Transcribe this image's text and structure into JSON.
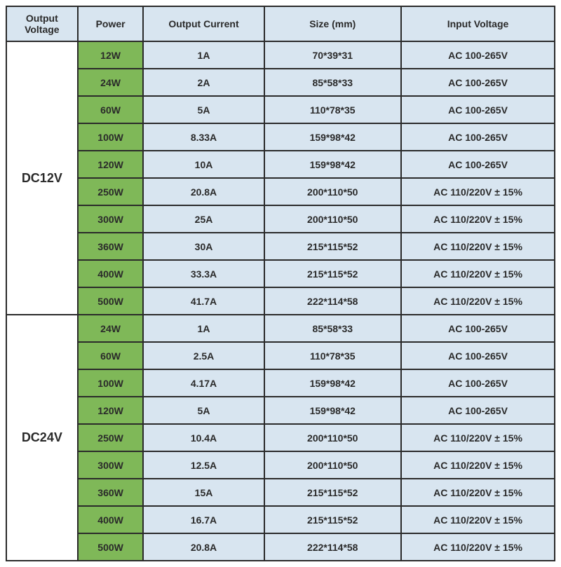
{
  "table": {
    "headers": {
      "output_voltage": "Output Voltage",
      "power": "Power",
      "output_current": "Output Current",
      "size": "Size (mm)",
      "input_voltage": "Input Voltage"
    },
    "colors": {
      "header_bg": "#d8e5f0",
      "voltage_bg": "#ffffff",
      "power_bg": "#7fb858",
      "data_bg": "#d8e5f0",
      "border": "#2a2a2a",
      "text": "#2a2a2a"
    },
    "groups": [
      {
        "voltage": "DC12V",
        "rows": [
          {
            "power": "12W",
            "current": "1A",
            "size": "70*39*31",
            "input": "AC 100-265V"
          },
          {
            "power": "24W",
            "current": "2A",
            "size": "85*58*33",
            "input": "AC 100-265V"
          },
          {
            "power": "60W",
            "current": "5A",
            "size": "110*78*35",
            "input": "AC 100-265V"
          },
          {
            "power": "100W",
            "current": "8.33A",
            "size": "159*98*42",
            "input": "AC 100-265V"
          },
          {
            "power": "120W",
            "current": "10A",
            "size": "159*98*42",
            "input": "AC 100-265V"
          },
          {
            "power": "250W",
            "current": "20.8A",
            "size": "200*110*50",
            "input": "AC 110/220V ± 15%"
          },
          {
            "power": "300W",
            "current": "25A",
            "size": "200*110*50",
            "input": "AC 110/220V ± 15%"
          },
          {
            "power": "360W",
            "current": "30A",
            "size": "215*115*52",
            "input": "AC 110/220V ± 15%"
          },
          {
            "power": "400W",
            "current": "33.3A",
            "size": "215*115*52",
            "input": "AC 110/220V ± 15%"
          },
          {
            "power": "500W",
            "current": "41.7A",
            "size": "222*114*58",
            "input": "AC 110/220V ± 15%"
          }
        ]
      },
      {
        "voltage": "DC24V",
        "rows": [
          {
            "power": "24W",
            "current": "1A",
            "size": "85*58*33",
            "input": "AC 100-265V"
          },
          {
            "power": "60W",
            "current": "2.5A",
            "size": "110*78*35",
            "input": "AC 100-265V"
          },
          {
            "power": "100W",
            "current": "4.17A",
            "size": "159*98*42",
            "input": "AC 100-265V"
          },
          {
            "power": "120W",
            "current": "5A",
            "size": "159*98*42",
            "input": "AC 100-265V"
          },
          {
            "power": "250W",
            "current": "10.4A",
            "size": "200*110*50",
            "input": "AC 110/220V ± 15%"
          },
          {
            "power": "300W",
            "current": "12.5A",
            "size": "200*110*50",
            "input": "AC 110/220V ± 15%"
          },
          {
            "power": "360W",
            "current": "15A",
            "size": "215*115*52",
            "input": "AC 110/220V ± 15%"
          },
          {
            "power": "400W",
            "current": "16.7A",
            "size": "215*115*52",
            "input": "AC 110/220V ± 15%"
          },
          {
            "power": "500W",
            "current": "20.8A",
            "size": "222*114*58",
            "input": "AC 110/220V ± 15%"
          }
        ]
      }
    ]
  }
}
